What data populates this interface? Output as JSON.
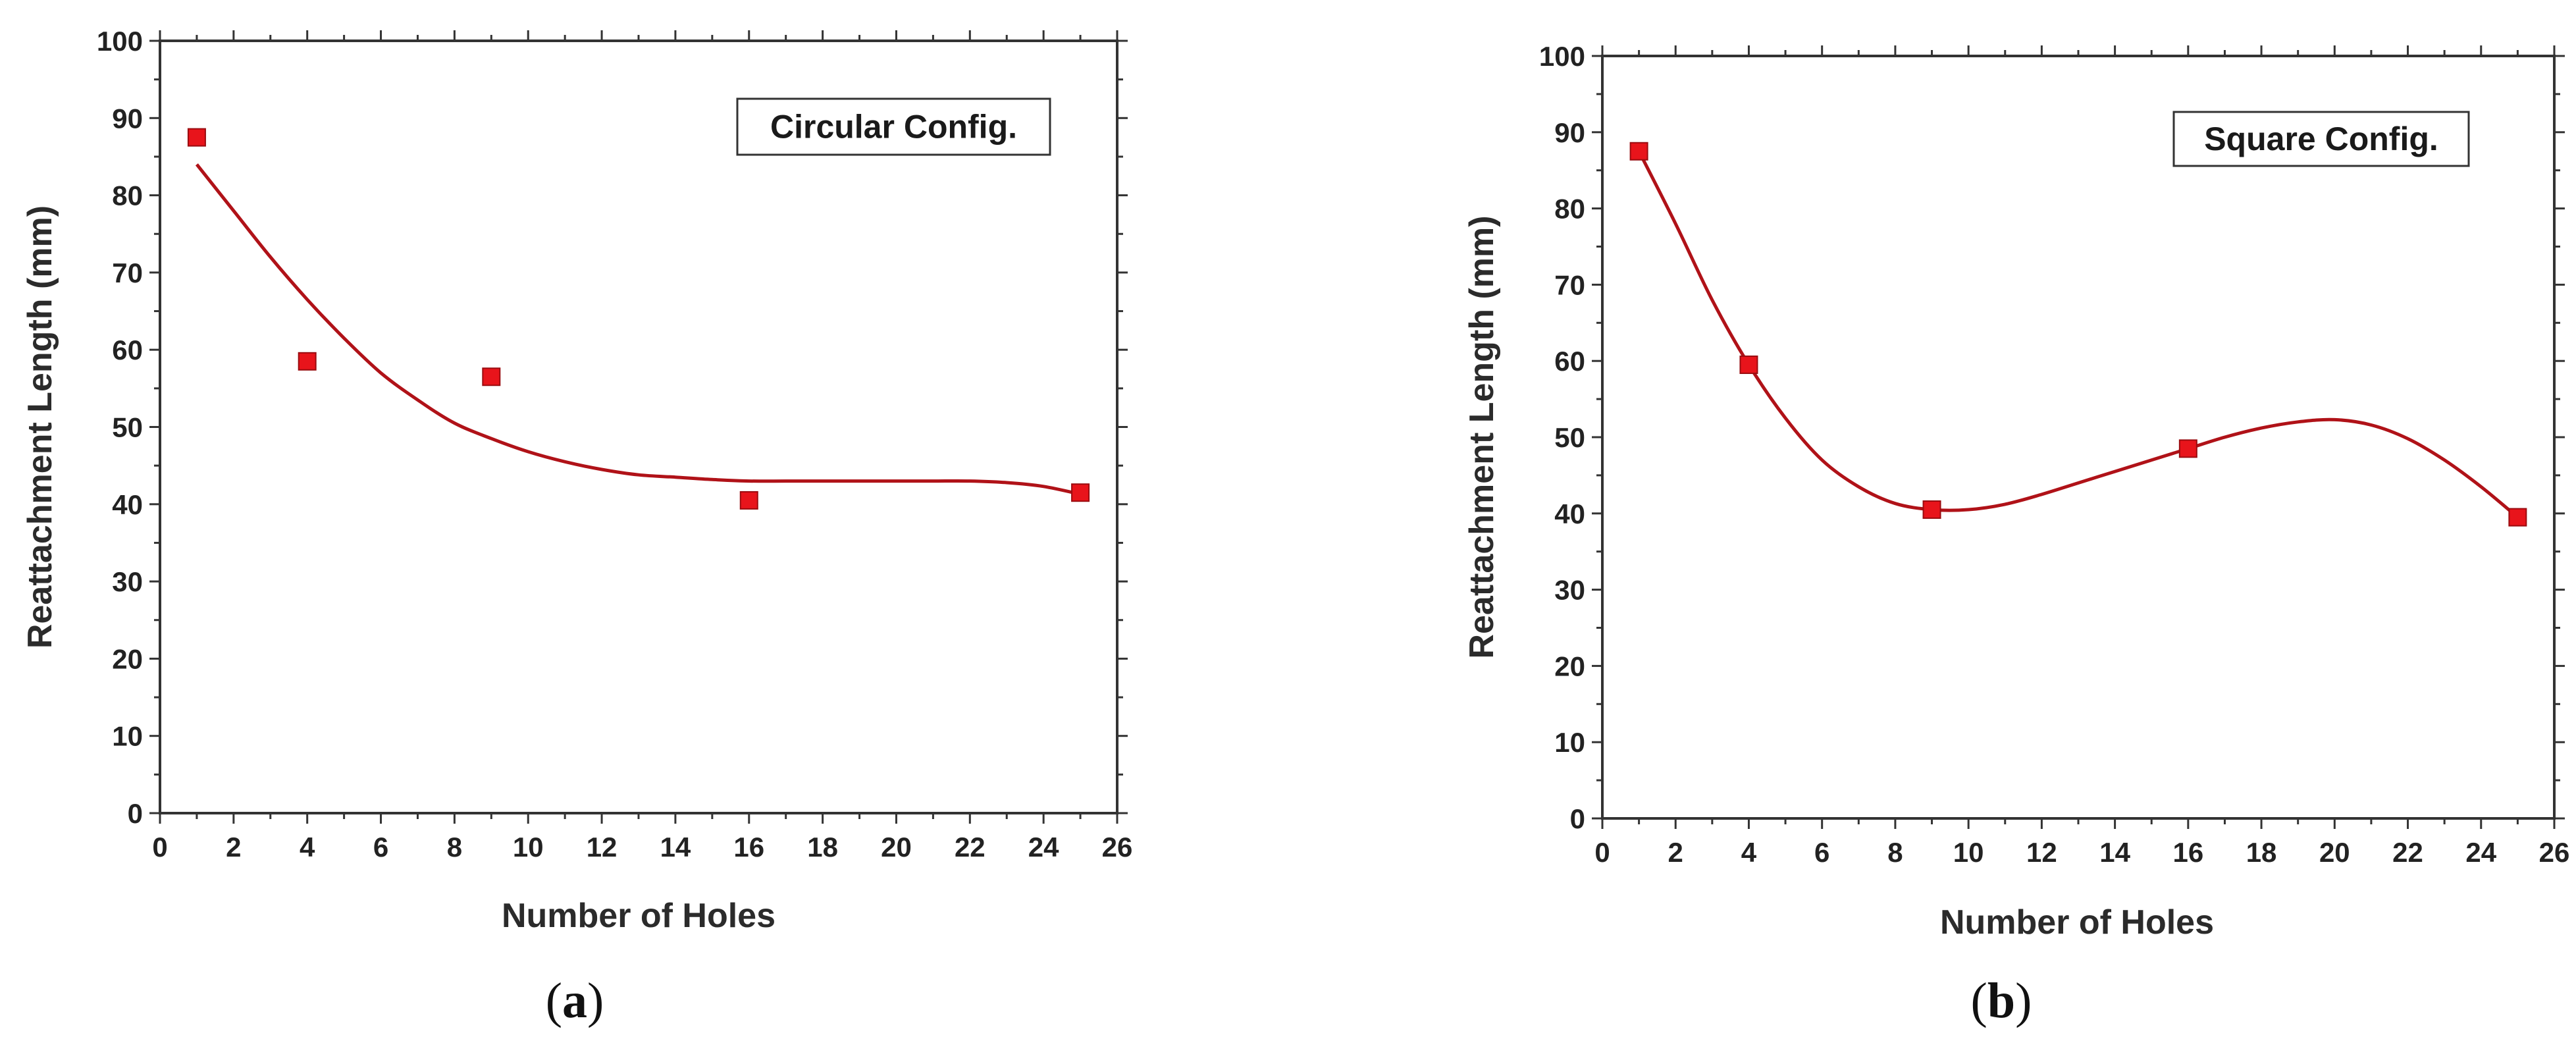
{
  "chart_data": [
    {
      "type": "scatter",
      "panel_label": "a",
      "annotation": "Circular Config.",
      "xlabel": "Number of Holes",
      "ylabel": "Reattachment Length (mm)",
      "xlim": [
        0,
        26
      ],
      "ylim": [
        0,
        100
      ],
      "xticks": [
        0,
        2,
        4,
        6,
        8,
        10,
        12,
        14,
        16,
        18,
        20,
        22,
        24,
        26
      ],
      "yticks": [
        0,
        10,
        20,
        30,
        40,
        50,
        60,
        70,
        80,
        90,
        100
      ],
      "grid": false,
      "marker_color": "#e8141b",
      "line_color": "#b01218",
      "series": [
        {
          "x": [
            1,
            4,
            9,
            16,
            25
          ],
          "y": [
            87.5,
            58.5,
            56.5,
            40.5,
            41.5
          ]
        }
      ],
      "fit_curve": {
        "x": [
          1,
          2,
          3,
          4,
          5,
          6,
          7,
          8,
          9,
          10,
          11,
          12,
          13,
          14,
          15,
          16,
          17,
          18,
          19,
          20,
          21,
          22,
          23,
          24,
          25
        ],
        "y": [
          84,
          78,
          72,
          66.5,
          61.5,
          57,
          53.5,
          50.5,
          48.5,
          46.8,
          45.5,
          44.5,
          43.8,
          43.5,
          43.2,
          43,
          43,
          43,
          43,
          43,
          43,
          43,
          42.8,
          42.3,
          41.3
        ]
      }
    },
    {
      "type": "scatter",
      "panel_label": "b",
      "annotation": "Square Config.",
      "xlabel": "Number of Holes",
      "ylabel": "Reattachment Length (mm)",
      "xlim": [
        0,
        26
      ],
      "ylim": [
        0,
        100
      ],
      "xticks": [
        0,
        2,
        4,
        6,
        8,
        10,
        12,
        14,
        16,
        18,
        20,
        22,
        24,
        26
      ],
      "yticks": [
        0,
        10,
        20,
        30,
        40,
        50,
        60,
        70,
        80,
        90,
        100
      ],
      "grid": false,
      "marker_color": "#e8141b",
      "line_color": "#b01218",
      "series": [
        {
          "x": [
            1,
            4,
            9,
            16,
            25
          ],
          "y": [
            87.5,
            59.5,
            40.5,
            48.5,
            39.5
          ]
        }
      ],
      "fit_curve": {
        "x": [
          1,
          2,
          3,
          4,
          5,
          6,
          7,
          8,
          9,
          10,
          11,
          12,
          13,
          14,
          15,
          16,
          17,
          18,
          19,
          20,
          21,
          22,
          23,
          24,
          25
        ],
        "y": [
          87.5,
          78,
          68,
          59.5,
          52.5,
          47,
          43.5,
          41.3,
          40.5,
          40.5,
          41.2,
          42.5,
          44,
          45.5,
          47,
          48.5,
          50,
          51.2,
          52,
          52.3,
          51.6,
          49.8,
          47,
          43.5,
          39.5
        ]
      }
    }
  ]
}
